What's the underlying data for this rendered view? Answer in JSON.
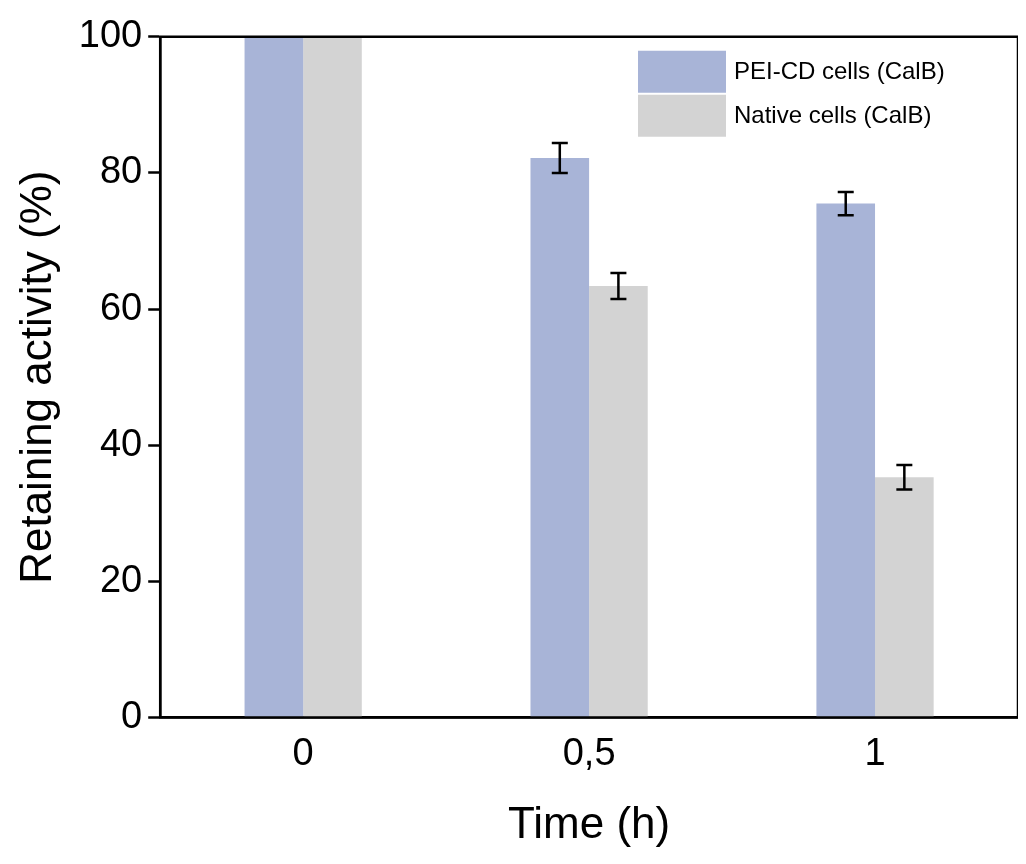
{
  "chart_data": {
    "type": "bar",
    "xlabel": "Time (h)",
    "ylabel": "Retaining activity (%)",
    "categories": [
      "0",
      "0,5",
      "1"
    ],
    "series": [
      {
        "name": "PEI-CD cells (CalB)",
        "color": "#a8b4d7",
        "values": [
          100,
          82.2,
          75.5
        ],
        "errors": [
          null,
          2.2,
          1.7
        ]
      },
      {
        "name": "Native cells (CalB)",
        "color": "#d3d3d3",
        "values": [
          100,
          63.4,
          35.3
        ],
        "errors": [
          null,
          1.9,
          1.8
        ]
      }
    ],
    "ylim": [
      0,
      100
    ],
    "yticks": [
      0,
      20,
      40,
      60,
      80,
      100
    ],
    "grid": false,
    "legend": "top right"
  }
}
